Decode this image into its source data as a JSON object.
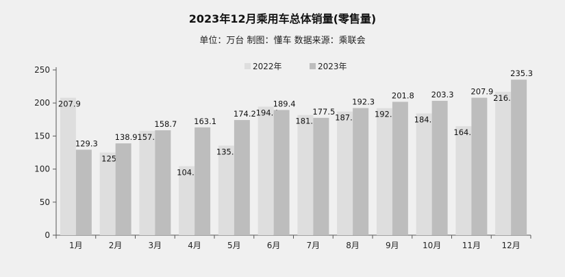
{
  "chart_data": {
    "type": "bar",
    "title": "2023年12月乘用车总体销量(零售量)",
    "subtitle": "单位：万台 制图：懂车  数据来源：乘联会",
    "categories": [
      "1月",
      "2月",
      "3月",
      "4月",
      "5月",
      "6月",
      "7月",
      "8月",
      "9月",
      "10月",
      "11月",
      "12月"
    ],
    "series": [
      {
        "name": "2022年",
        "color": "#dedede",
        "values": [
          207.9,
          125,
          157.9,
          104.3,
          135.4,
          194.4,
          181.8,
          187.1,
          192.2,
          184.2,
          164.8,
          216.9
        ]
      },
      {
        "name": "2023年",
        "color": "#bdbdbd",
        "values": [
          129.3,
          138.9,
          158.7,
          163.1,
          174.2,
          189.4,
          177.5,
          192.3,
          201.8,
          203.3,
          207.9,
          235.3
        ]
      }
    ],
    "ylim": [
      0,
      250
    ],
    "yticks": [
      0,
      50,
      100,
      150,
      200,
      250
    ],
    "legend": "top-center",
    "grid": false
  }
}
